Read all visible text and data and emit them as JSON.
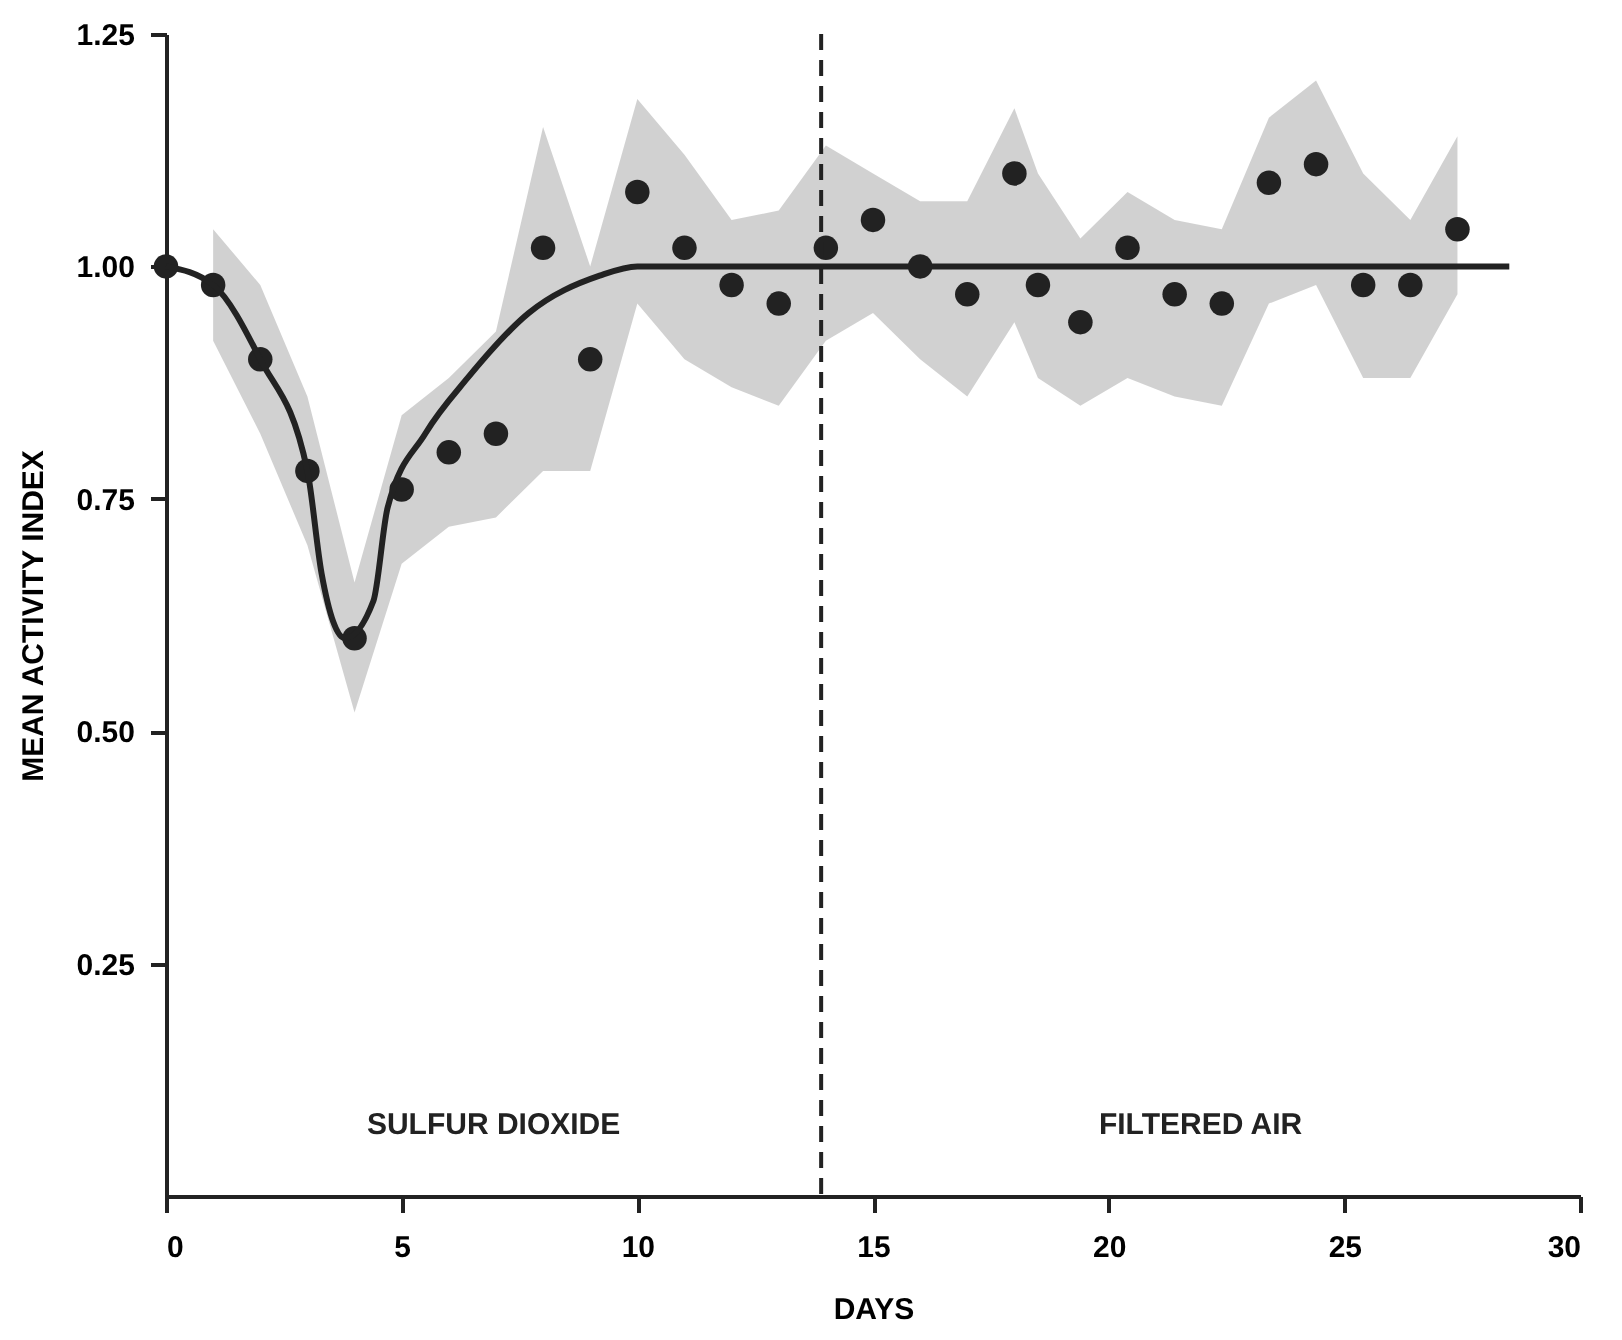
{
  "chart_data": {
    "type": "scatter",
    "xlabel": "DAYS",
    "ylabel": "MEAN ACTIVITY INDEX",
    "xlim": [
      0,
      30
    ],
    "ylim": [
      0,
      1.25
    ],
    "xticks": [
      0,
      5,
      10,
      15,
      20,
      25,
      30
    ],
    "yticks": [
      0.25,
      {
        "value": 0.5,
        "label": "0.50"
      },
      0.75,
      {
        "value": 1.0,
        "label": "1.00"
      },
      1.25
    ],
    "grid": false,
    "series": [
      {
        "color": "#222222",
        "marker": "circle",
        "x": [
          0,
          1,
          2,
          3,
          4,
          5,
          6,
          7,
          8,
          9,
          10,
          11,
          12,
          13,
          14,
          15,
          16,
          17,
          18,
          18.5,
          19.4,
          20.4,
          21.4,
          22.4,
          23.4,
          24.4,
          25.4,
          26.4,
          27.4
        ],
        "values": [
          1.0,
          0.98,
          0.9,
          0.78,
          0.6,
          0.76,
          0.8,
          0.82,
          1.02,
          0.9,
          1.08,
          1.02,
          0.98,
          0.96,
          1.02,
          1.05,
          1.0,
          0.97,
          1.1,
          0.98,
          0.94,
          1.02,
          0.97,
          0.96,
          1.09,
          1.11,
          0.98,
          0.98,
          1.04
        ],
        "upper": [
          null,
          1.04,
          0.98,
          0.86,
          0.66,
          0.84,
          0.88,
          0.93,
          1.15,
          1.0,
          1.18,
          1.12,
          1.05,
          1.06,
          1.13,
          1.1,
          1.07,
          1.07,
          1.17,
          1.1,
          1.03,
          1.08,
          1.05,
          1.04,
          1.16,
          1.2,
          1.1,
          1.05,
          1.14
        ],
        "lower": [
          null,
          0.92,
          0.82,
          0.7,
          0.52,
          0.68,
          0.72,
          0.73,
          0.78,
          0.78,
          0.96,
          0.9,
          0.87,
          0.85,
          0.92,
          0.95,
          0.9,
          0.86,
          0.94,
          0.88,
          0.85,
          0.88,
          0.86,
          0.85,
          0.96,
          0.98,
          0.88,
          0.88,
          0.97
        ]
      },
      {
        "type": "line",
        "color": "#222222",
        "line_style": "solid",
        "marker": "none",
        "x": [
          0,
          1,
          2,
          3,
          3.3,
          3.8,
          4.4,
          4.7,
          5.5,
          6.4,
          7.7,
          9.2,
          10,
          28.5
        ],
        "values": [
          1.0,
          0.98,
          0.9,
          0.78,
          0.67,
          0.6,
          0.64,
          0.74,
          0.82,
          0.88,
          0.95,
          0.99,
          1.0,
          1.0
        ]
      }
    ],
    "ref_lines": [
      {
        "axis": "x",
        "value": 13.9,
        "line_style": "dashed",
        "color": "#222222"
      }
    ],
    "annotations": [
      "SULFUR DIOXIDE",
      "FILTERED AIR"
    ]
  }
}
